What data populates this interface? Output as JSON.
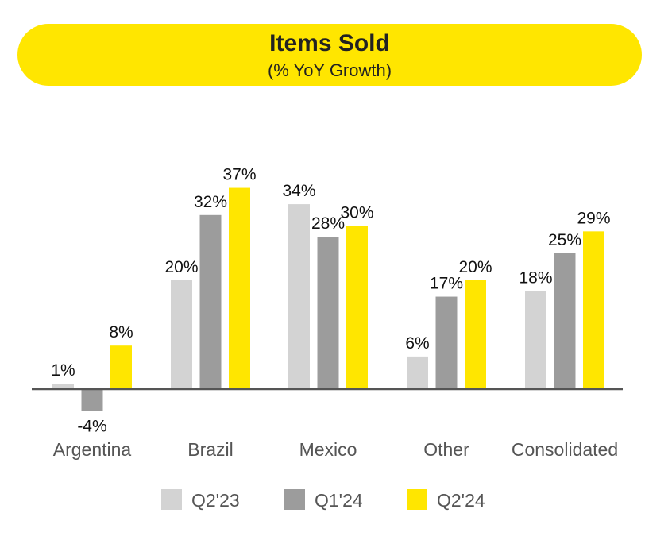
{
  "chart_data": {
    "type": "bar",
    "title": "Items Sold",
    "subtitle": "(% YoY Growth)",
    "categories": [
      "Argentina",
      "Brazil",
      "Mexico",
      "Other",
      "Consolidated"
    ],
    "series": [
      {
        "name": "Q2'23",
        "color": "#D3D3D3",
        "values": [
          1,
          20,
          34,
          6,
          18
        ],
        "labels": [
          "1%",
          "20%",
          "34%",
          "6%",
          "18%"
        ]
      },
      {
        "name": "Q1'24",
        "color": "#9C9C9C",
        "values": [
          -4,
          32,
          28,
          17,
          25
        ],
        "labels": [
          "-4%",
          "32%",
          "28%",
          "17%",
          "25%"
        ]
      },
      {
        "name": "Q2'24",
        "color": "#FFE600",
        "values": [
          8,
          37,
          30,
          20,
          29
        ],
        "labels": [
          "8%",
          "37%",
          "30%",
          "20%",
          "29%"
        ]
      }
    ],
    "ylim": [
      -4,
      37
    ],
    "grid": false,
    "legend_position": "bottom"
  }
}
